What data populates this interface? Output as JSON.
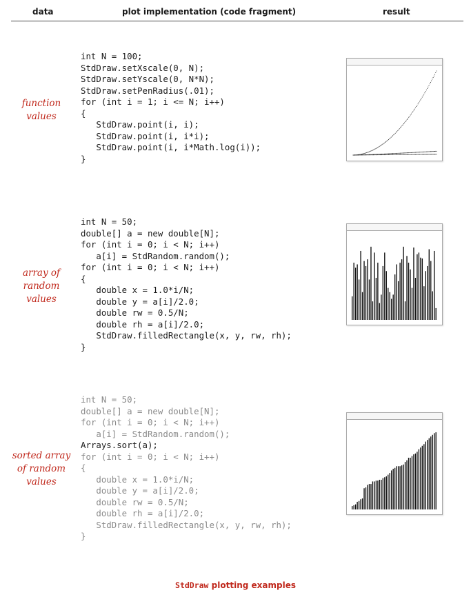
{
  "header": {
    "col_data": "data",
    "col_impl": "plot implementation (code fragment)",
    "col_result": "result"
  },
  "rows": [
    {
      "label": [
        "function",
        "values"
      ],
      "code": [
        {
          "text": "int N = 100;",
          "tone": "dark"
        },
        {
          "text": "StdDraw.setXscale(0, N);",
          "tone": "dark"
        },
        {
          "text": "StdDraw.setYscale(0, N*N);",
          "tone": "dark"
        },
        {
          "text": "StdDraw.setPenRadius(.01);",
          "tone": "dark"
        },
        {
          "text": "for (int i = 1; i <= N; i++)",
          "tone": "dark"
        },
        {
          "text": "{",
          "tone": "dark"
        },
        {
          "text": "   StdDraw.point(i, i);",
          "tone": "dark"
        },
        {
          "text": "   StdDraw.point(i, i*i);",
          "tone": "dark"
        },
        {
          "text": "   StdDraw.point(i, i*Math.log(i));",
          "tone": "dark"
        },
        {
          "text": "}",
          "tone": "dark"
        }
      ]
    },
    {
      "label": [
        "array of",
        "random",
        "values"
      ],
      "code": [
        {
          "text": "int N = 50;",
          "tone": "dark"
        },
        {
          "text": "double[] a = new double[N];",
          "tone": "dark"
        },
        {
          "text": "for (int i = 0; i < N; i++)",
          "tone": "dark"
        },
        {
          "text": "   a[i] = StdRandom.random();",
          "tone": "dark"
        },
        {
          "text": "for (int i = 0; i < N; i++)",
          "tone": "dark"
        },
        {
          "text": "{",
          "tone": "dark"
        },
        {
          "text": "   double x = 1.0*i/N;",
          "tone": "dark"
        },
        {
          "text": "   double y = a[i]/2.0;",
          "tone": "dark"
        },
        {
          "text": "   double rw = 0.5/N;",
          "tone": "dark"
        },
        {
          "text": "   double rh = a[i]/2.0;",
          "tone": "dark"
        },
        {
          "text": "   StdDraw.filledRectangle(x, y, rw, rh);",
          "tone": "dark"
        },
        {
          "text": "}",
          "tone": "dark"
        }
      ]
    },
    {
      "label": [
        "sorted array",
        "of random",
        "values"
      ],
      "code": [
        {
          "text": "int N = 50;",
          "tone": "dim"
        },
        {
          "text": "double[] a = new double[N];",
          "tone": "dim"
        },
        {
          "text": "for (int i = 0; i < N; i++)",
          "tone": "dim"
        },
        {
          "text": "   a[i] = StdRandom.random();",
          "tone": "dim"
        },
        {
          "text": "Arrays.sort(a);",
          "tone": "dark"
        },
        {
          "text": "for (int i = 0; i < N; i++)",
          "tone": "dim"
        },
        {
          "text": "{",
          "tone": "dim"
        },
        {
          "text": "   double x = 1.0*i/N;",
          "tone": "dim"
        },
        {
          "text": "   double y = a[i]/2.0;",
          "tone": "dim"
        },
        {
          "text": "   double rw = 0.5/N;",
          "tone": "dim"
        },
        {
          "text": "   double rh = a[i]/2.0;",
          "tone": "dim"
        },
        {
          "text": "   StdDraw.filledRectangle(x, y, rw, rh);",
          "tone": "dim"
        },
        {
          "text": "}",
          "tone": "dim"
        }
      ]
    }
  ],
  "chart_data": [
    {
      "type": "scatter",
      "N": 100,
      "xlim": [
        0,
        100
      ],
      "ylim": [
        0,
        10000
      ],
      "series": [
        {
          "function": "i"
        },
        {
          "function": "i*i"
        },
        {
          "function": "i*Math.log(i)"
        }
      ]
    },
    {
      "type": "bar",
      "N": 50,
      "ylim": [
        0,
        1
      ],
      "values": [
        0.28,
        0.68,
        0.62,
        0.66,
        0.48,
        0.82,
        0.33,
        0.7,
        0.64,
        0.72,
        0.48,
        0.87,
        0.22,
        0.8,
        0.5,
        0.68,
        0.2,
        0.3,
        0.64,
        0.8,
        0.58,
        0.38,
        0.33,
        0.25,
        0.3,
        0.54,
        0.66,
        0.46,
        0.68,
        0.72,
        0.87,
        0.22,
        0.76,
        0.68,
        0.6,
        0.38,
        0.86,
        0.5,
        0.78,
        0.8,
        0.74,
        0.73,
        0.4,
        0.58,
        0.64,
        0.84,
        0.7,
        0.34,
        0.82,
        0.14
      ]
    },
    {
      "type": "bar",
      "N": 50,
      "ylim": [
        0,
        1
      ],
      "sorted": true,
      "values": [
        0.04,
        0.05,
        0.06,
        0.09,
        0.1,
        0.12,
        0.13,
        0.25,
        0.26,
        0.29,
        0.3,
        0.3,
        0.33,
        0.33,
        0.34,
        0.34,
        0.35,
        0.35,
        0.37,
        0.38,
        0.39,
        0.41,
        0.43,
        0.46,
        0.48,
        0.49,
        0.51,
        0.51,
        0.51,
        0.52,
        0.53,
        0.56,
        0.58,
        0.61,
        0.61,
        0.63,
        0.65,
        0.66,
        0.68,
        0.71,
        0.73,
        0.75,
        0.77,
        0.8,
        0.82,
        0.84,
        0.86,
        0.88,
        0.9,
        0.91
      ]
    }
  ],
  "caption": {
    "code_part": "StdDraw",
    "text_part": "plotting examples"
  }
}
